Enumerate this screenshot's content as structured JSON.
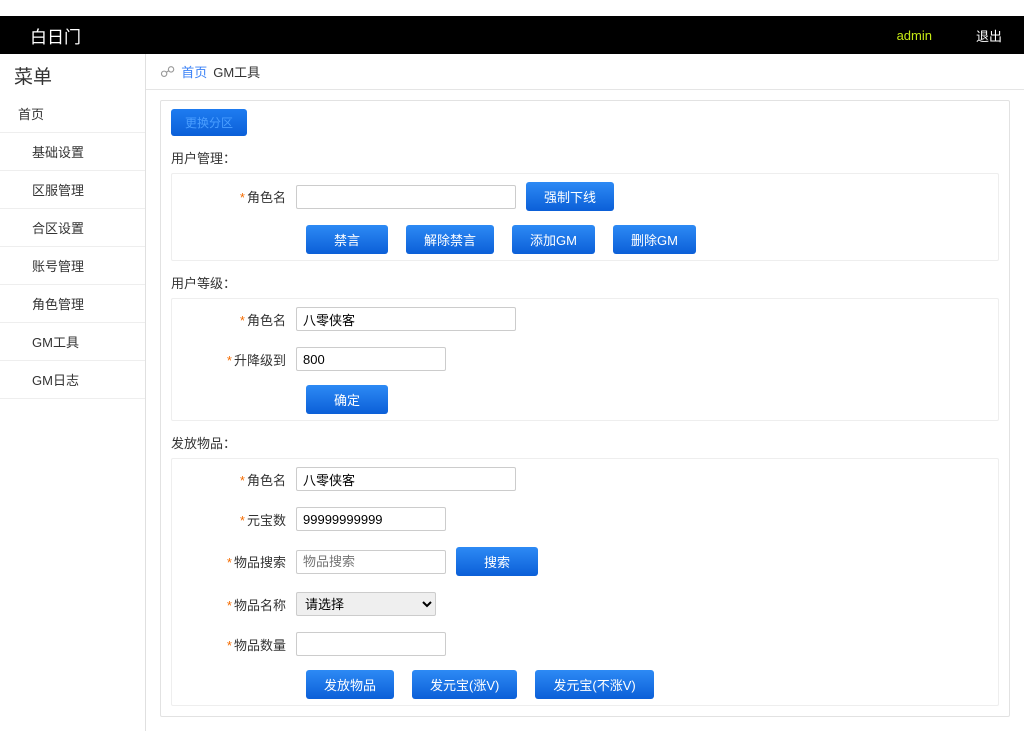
{
  "topbar": {
    "brand": "白日门",
    "user": "admin",
    "exit": "退出"
  },
  "sidebar": {
    "title": "菜单",
    "items": [
      {
        "label": "首页",
        "sub": false
      },
      {
        "label": "基础设置",
        "sub": true
      },
      {
        "label": "区服管理",
        "sub": true
      },
      {
        "label": "合区设置",
        "sub": true
      },
      {
        "label": "账号管理",
        "sub": true
      },
      {
        "label": "角色管理",
        "sub": true
      },
      {
        "label": "GM工具",
        "sub": true
      },
      {
        "label": "GM日志",
        "sub": true
      }
    ]
  },
  "breadcrumb": {
    "home": "首页",
    "current": "GM工具"
  },
  "panel": {
    "switch_zone": "更换分区",
    "user_mgmt": {
      "title": "用户管理：",
      "role_label": "角色名",
      "role_value": "",
      "force_offline": "强制下线",
      "ban": "禁言",
      "unban": "解除禁言",
      "add_gm": "添加GM",
      "del_gm": "删除GM"
    },
    "user_level": {
      "title": "用户等级：",
      "role_label": "角色名",
      "role_value": "八零侠客",
      "level_label": "升降级到",
      "level_value": "800",
      "confirm": "确定"
    },
    "give_item": {
      "title": "发放物品：",
      "role_label": "角色名",
      "role_value": "八零侠客",
      "yuanbao_label": "元宝数",
      "yuanbao_value": "99999999999",
      "search_label": "物品搜索",
      "search_ph": "物品搜索",
      "search_btn": "搜索",
      "name_label": "物品名称",
      "name_ph": "请选择",
      "qty_label": "物品数量",
      "qty_value": "",
      "give_btn": "发放物品",
      "yb_up": "发元宝(涨V)",
      "yb_noup": "发元宝(不涨V)"
    }
  }
}
